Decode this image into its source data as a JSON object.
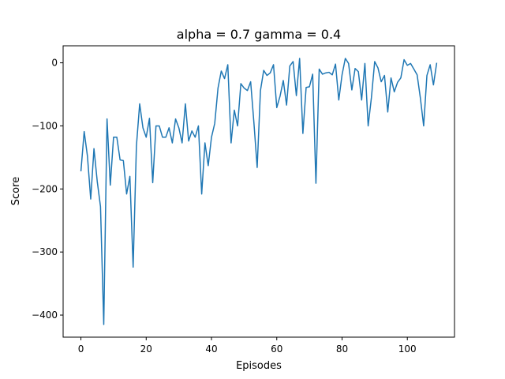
{
  "chart_data": {
    "type": "line",
    "title": "alpha =  0.7 gamma = 0.4",
    "xlabel": "Episodes",
    "ylabel": "Score",
    "xlim": [
      -5.45,
      114.45
    ],
    "ylim": [
      -435,
      27
    ],
    "xticks": [
      0,
      20,
      40,
      60,
      80,
      100
    ],
    "yticks": [
      0,
      -100,
      -200,
      -300,
      -400
    ],
    "xtick_labels": [
      "0",
      "20",
      "40",
      "60",
      "80",
      "100"
    ],
    "ytick_labels": [
      "0",
      "−100",
      "−200",
      "−300",
      "−400"
    ],
    "grid": false,
    "line_color": "#1f77b4",
    "series": [
      {
        "values": [
          -172,
          -109,
          -148,
          -216,
          -136,
          -188,
          -228,
          -415,
          -89,
          -194,
          -118,
          -118,
          -154,
          -155,
          -208,
          -180,
          -324,
          -132,
          -65,
          -103,
          -118,
          -88,
          -190,
          -100,
          -100,
          -118,
          -118,
          -103,
          -127,
          -89,
          -103,
          -127,
          -65,
          -124,
          -108,
          -118,
          -100,
          -208,
          -127,
          -163,
          -118,
          -96,
          -40,
          -13,
          -25,
          -3,
          -127,
          -75,
          -100,
          -33,
          -40,
          -44,
          -30,
          -95,
          -166,
          -44,
          -12,
          -20,
          -16,
          -3,
          -71,
          -53,
          -28,
          -67,
          -5,
          2,
          -52,
          7,
          -112,
          -39,
          -38,
          -18,
          -191,
          -10,
          -18,
          -16,
          -15,
          -19,
          -2,
          -59,
          -19,
          7,
          -1,
          -43,
          -9,
          -14,
          -59,
          -1,
          -100,
          -55,
          2,
          -8,
          -30,
          -20,
          -78,
          -24,
          -46,
          -31,
          -24,
          5,
          -4,
          -1,
          -10,
          -19,
          -56,
          -100,
          -20,
          -3,
          -35,
          0
        ]
      }
    ]
  }
}
